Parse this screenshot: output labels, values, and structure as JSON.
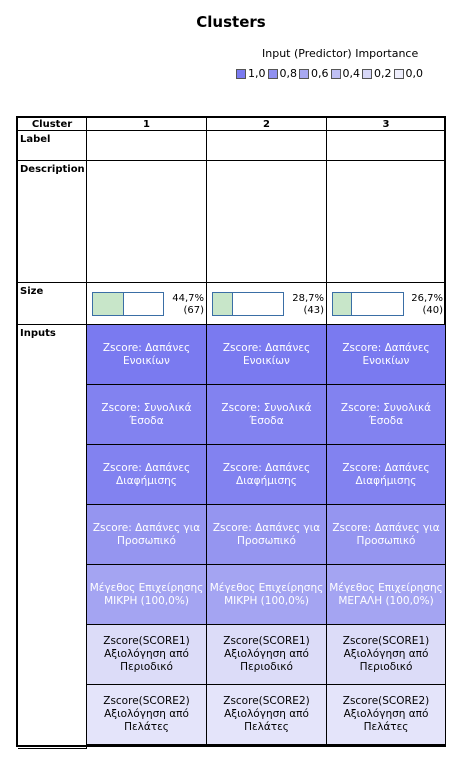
{
  "title": "Clusters",
  "legend": {
    "title": "Input (Predictor) Importance",
    "items": [
      {
        "label": "1,0",
        "color": "#7a7af0"
      },
      {
        "label": "0,8",
        "color": "#9090f0"
      },
      {
        "label": "0,6",
        "color": "#a8a8f2"
      },
      {
        "label": "0,4",
        "color": "#c0c0f5"
      },
      {
        "label": "0,2",
        "color": "#d8d8f8"
      },
      {
        "label": "0,0",
        "color": "#eeeefc"
      }
    ]
  },
  "table": {
    "corner": "Cluster",
    "clusters": [
      "1",
      "2",
      "3"
    ],
    "row_labels": {
      "label": "Label",
      "description": "Description",
      "size": "Size",
      "inputs": "Inputs"
    },
    "sizes": [
      {
        "pct": "44,7%",
        "count": "(67)",
        "fraction": 0.447
      },
      {
        "pct": "28,7%",
        "count": "(43)",
        "fraction": 0.287
      },
      {
        "pct": "26,7%",
        "count": "(40)",
        "fraction": 0.267
      }
    ],
    "inputs": [
      {
        "color": "#7a7af0",
        "cells": [
          "Zscore: Δαπάνες Ενοικίων",
          "Zscore: Δαπάνες Ενοικίων",
          "Zscore: Δαπάνες Ενοικίων"
        ]
      },
      {
        "color": "#8282f0",
        "cells": [
          "Zscore: Συνολικά Έσοδα",
          "Zscore: Συνολικά Έσοδα",
          "Zscore: Συνολικά Έσοδα"
        ]
      },
      {
        "color": "#8282f0",
        "cells": [
          "Zscore: Δαπάνες Διαφήμισης",
          "Zscore: Δαπάνες Διαφήμισης",
          "Zscore: Δαπάνες Διαφήμισης"
        ]
      },
      {
        "color": "#9595f0",
        "cells": [
          "Zscore: Δαπάνες για Προσωπικό",
          "Zscore: Δαπάνες για Προσωπικό",
          "Zscore: Δαπάνες για Προσωπικό"
        ]
      },
      {
        "color": "#a4a4f2",
        "cells": [
          "Μέγεθος Επιχείρησης ΜΙΚΡΗ (100,0%)",
          "Μέγεθος Επιχείρησης ΜΙΚΡΗ (100,0%)",
          "Μέγεθος Επιχείρησης ΜΕΓΑΛΗ (100,0%)"
        ]
      },
      {
        "color": "#dcdcf8",
        "cells": [
          "Zscore(SCORE1) Αξιολόγηση από Περιοδικό",
          "Zscore(SCORE1) Αξιολόγηση από Περιοδικό",
          "Zscore(SCORE1) Αξιολόγηση από Περιοδικό"
        ]
      },
      {
        "color": "#e4e4fa",
        "cells": [
          "Zscore(SCORE2) Αξιολόγηση από Πελάτες",
          "Zscore(SCORE2) Αξιολόγηση από Πελάτες",
          "Zscore(SCORE2) Αξιολόγηση από Πελάτες"
        ]
      }
    ]
  }
}
